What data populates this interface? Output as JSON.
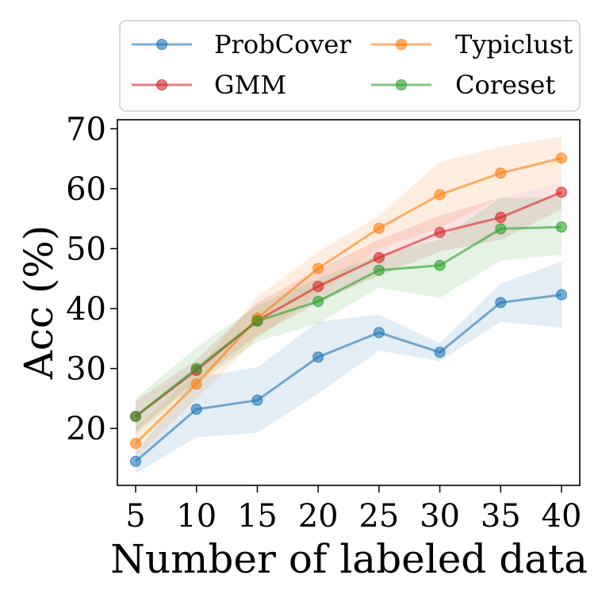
{
  "chart_data": {
    "type": "line",
    "title": "",
    "xlabel": "Number of labeled data",
    "ylabel": "Acc (%)",
    "x": [
      5,
      10,
      15,
      20,
      25,
      30,
      35,
      40
    ],
    "xlim": [
      3.5,
      41.5
    ],
    "ylim": [
      10.5,
      71.5
    ],
    "x_ticks": [
      5,
      10,
      15,
      20,
      25,
      30,
      35,
      40
    ],
    "y_ticks": [
      20,
      30,
      40,
      50,
      60,
      70
    ],
    "grid": false,
    "legend": {
      "placement": "top",
      "columns": 2
    },
    "series": [
      {
        "name": "ProbCover",
        "color": "#1f77b4",
        "values": [
          14.5,
          23.2,
          24.7,
          31.9,
          36.0,
          32.7,
          41.0,
          42.3
        ],
        "lower": [
          12.5,
          18.5,
          19.3,
          25.8,
          33.0,
          31.2,
          37.8,
          36.8
        ],
        "upper": [
          16.0,
          28.5,
          30.2,
          37.8,
          39.0,
          34.2,
          44.2,
          47.8
        ]
      },
      {
        "name": "GMM",
        "color": "#d62728",
        "values": [
          22.0,
          29.7,
          38.0,
          43.7,
          48.5,
          52.7,
          55.2,
          59.4
        ],
        "lower": [
          19.5,
          28.0,
          35.5,
          41.0,
          45.5,
          49.5,
          51.5,
          56.5
        ],
        "upper": [
          24.5,
          31.5,
          41.0,
          46.5,
          51.5,
          55.5,
          58.5,
          61.0
        ]
      },
      {
        "name": "Typiclust",
        "color": "#ff7f0e",
        "values": [
          17.5,
          27.4,
          38.4,
          46.7,
          53.4,
          59.0,
          62.6,
          65.1
        ],
        "lower": [
          15.0,
          25.0,
          35.0,
          42.5,
          50.0,
          53.5,
          58.5,
          61.0
        ],
        "upper": [
          20.0,
          29.5,
          42.0,
          49.5,
          55.5,
          64.5,
          67.0,
          68.7
        ]
      },
      {
        "name": "Coreset",
        "color": "#2ca02c",
        "values": [
          22.0,
          30.0,
          37.9,
          41.2,
          46.4,
          47.2,
          53.3,
          53.6
        ],
        "lower": [
          19.0,
          27.5,
          34.5,
          37.5,
          43.5,
          41.8,
          48.0,
          49.0
        ],
        "upper": [
          25.0,
          33.5,
          40.5,
          45.0,
          49.0,
          51.5,
          58.5,
          58.5
        ]
      }
    ]
  }
}
